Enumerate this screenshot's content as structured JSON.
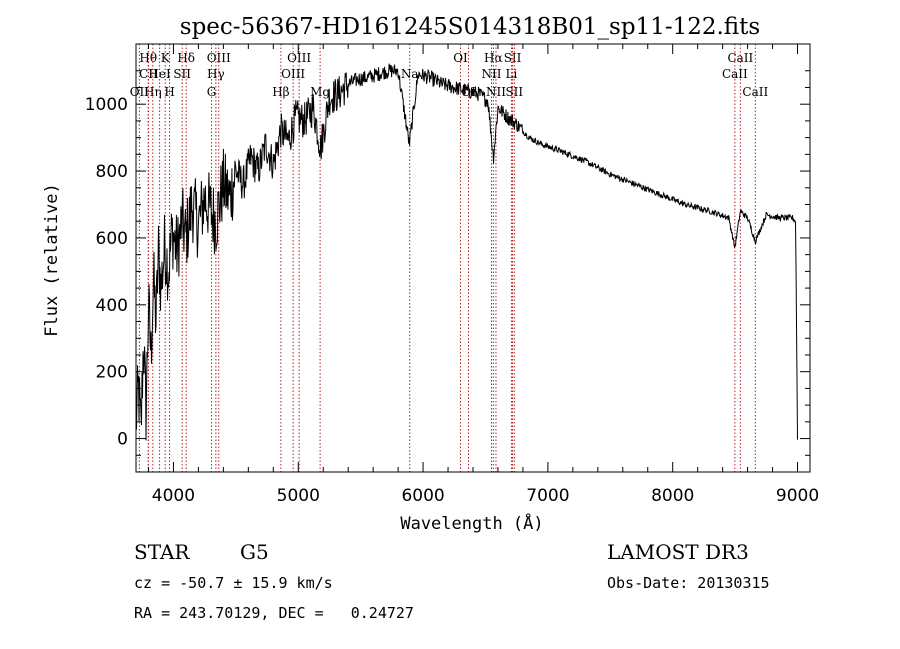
{
  "chart_data": {
    "type": "line",
    "title": "spec-56367-HD161245S014318B01_sp11-122.fits",
    "xlabel": "Wavelength (Å)",
    "ylabel": "Flux (relative)",
    "xlim": [
      3700,
      9100
    ],
    "ylim": [
      -100,
      1180
    ],
    "xticks": [
      4000,
      5000,
      6000,
      7000,
      8000,
      9000
    ],
    "yticks": [
      0,
      200,
      400,
      600,
      800,
      1000
    ],
    "spectrum": {
      "x": [
        3700,
        3720,
        3740,
        3760,
        3780,
        3800,
        3820,
        3840,
        3860,
        3880,
        3900,
        3930,
        3960,
        3990,
        4030,
        4070,
        4100,
        4150,
        4200,
        4250,
        4300,
        4340,
        4400,
        4450,
        4500,
        4560,
        4620,
        4680,
        4740,
        4800,
        4860,
        4920,
        4980,
        5050,
        5120,
        5180,
        5250,
        5320,
        5400,
        5480,
        5560,
        5640,
        5720,
        5800,
        5890,
        5960,
        6050,
        6150,
        6250,
        6350,
        6450,
        6520,
        6563,
        6600,
        6680,
        6750,
        6850,
        6950,
        7100,
        7300,
        7500,
        7700,
        7900,
        8100,
        8300,
        8450,
        8498,
        8542,
        8600,
        8662,
        8750,
        8850,
        8960,
        8985,
        9000
      ],
      "y": [
        50,
        150,
        20,
        300,
        80,
        400,
        250,
        480,
        350,
        560,
        450,
        580,
        500,
        620,
        560,
        650,
        600,
        700,
        640,
        720,
        680,
        650,
        760,
        720,
        800,
        760,
        840,
        800,
        880,
        820,
        920,
        890,
        960,
        950,
        990,
        870,
        1020,
        1030,
        1060,
        1075,
        1080,
        1090,
        1100,
        1100,
        880,
        1090,
        1080,
        1060,
        1050,
        1040,
        1030,
        1010,
        840,
        990,
        960,
        940,
        900,
        880,
        860,
        830,
        790,
        760,
        730,
        700,
        680,
        660,
        570,
        680,
        660,
        590,
        670,
        660,
        660,
        650,
        0
      ]
    },
    "lines": [
      {
        "name": "Hθ",
        "wave": 3798,
        "row": 1
      },
      {
        "name": "CII",
        "wave": 3800,
        "row": 2
      },
      {
        "name": "OII",
        "wave": 3727,
        "row": 3
      },
      {
        "name": "Hη",
        "wave": 3835,
        "row": 3
      },
      {
        "name": "K",
        "wave": 3934,
        "row": 1
      },
      {
        "name": "HeI",
        "wave": 3889,
        "row": 2
      },
      {
        "name": "H",
        "wave": 3969,
        "row": 3
      },
      {
        "name": "Hδ",
        "wave": 4102,
        "row": 1
      },
      {
        "name": "SII",
        "wave": 4070,
        "row": 2
      },
      {
        "name": "OIII",
        "wave": 4363,
        "row": 1
      },
      {
        "name": "Hγ",
        "wave": 4340,
        "row": 2
      },
      {
        "name": "G",
        "wave": 4305,
        "row": 3
      },
      {
        "name": "OIII",
        "wave": 5007,
        "row": 1
      },
      {
        "name": "OIII",
        "wave": 4959,
        "row": 2
      },
      {
        "name": "Hβ",
        "wave": 4861,
        "row": 3
      },
      {
        "name": "Mg",
        "wave": 5175,
        "row": 3
      },
      {
        "name": "Na",
        "wave": 5893,
        "row": 2
      },
      {
        "name": "OI",
        "wave": 6300,
        "row": 1
      },
      {
        "name": "OI",
        "wave": 6364,
        "row": 3
      },
      {
        "name": "Hα",
        "wave": 6563,
        "row": 1
      },
      {
        "name": "SII",
        "wave": 6717,
        "row": 1
      },
      {
        "name": "NII",
        "wave": 6548,
        "row": 2
      },
      {
        "name": "Li",
        "wave": 6708,
        "row": 2
      },
      {
        "name": "NII",
        "wave": 6584,
        "row": 3
      },
      {
        "name": "SII",
        "wave": 6731,
        "row": 3
      },
      {
        "name": "CaII",
        "wave": 8542,
        "row": 1
      },
      {
        "name": "CaII",
        "wave": 8498,
        "row": 2
      },
      {
        "name": "CaII",
        "wave": 8662,
        "row": 3
      }
    ],
    "colors": {
      "spectrum": "#000000",
      "lines": "#b22222",
      "axes": "#000000"
    }
  },
  "info": {
    "object_class": "STAR",
    "subclass": "G5",
    "survey": "LAMOST DR3",
    "redshift": "cz = -50.7 ± 15.9 km/s",
    "obs_date": "Obs-Date: 20130315",
    "coords": "RA = 243.70129, DEC =   0.24727"
  }
}
